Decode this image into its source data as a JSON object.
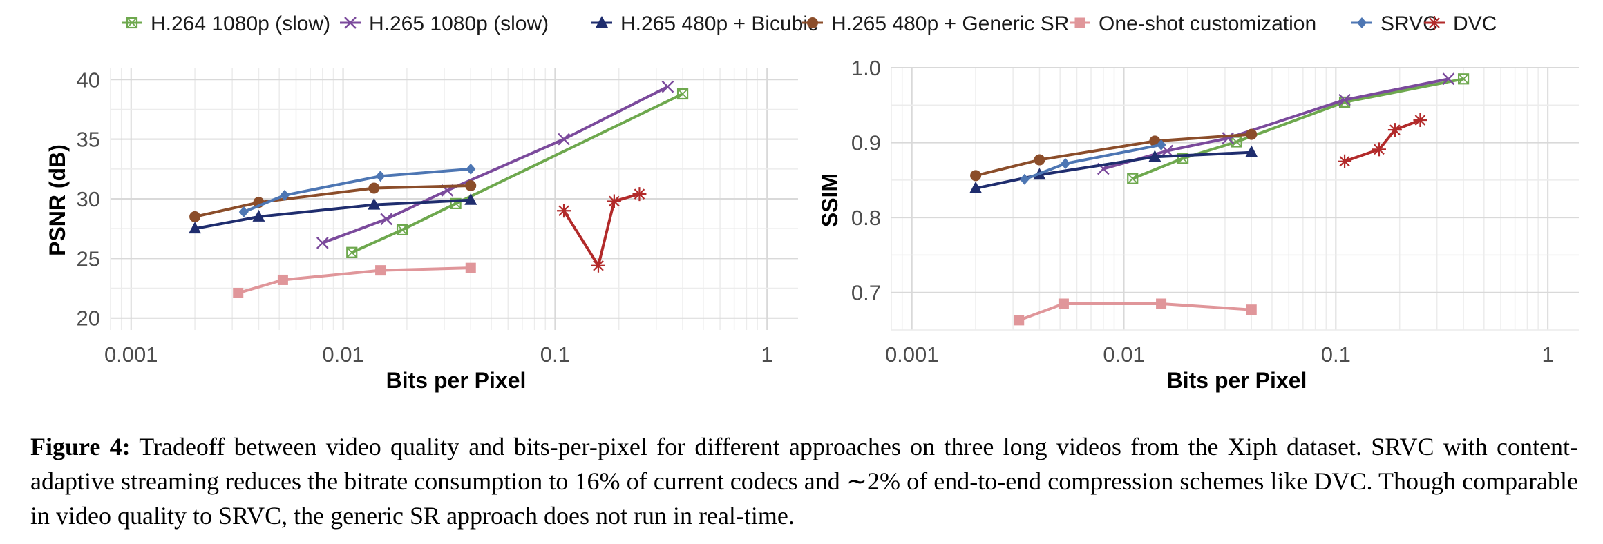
{
  "chart_data": [
    {
      "type": "line",
      "title": "",
      "xlabel": "Bits per Pixel",
      "ylabel": "PSNR (dB)",
      "xscale": "log",
      "xlim": [
        0.0008,
        1.4
      ],
      "ylim": [
        19,
        41
      ],
      "xticks": [
        0.001,
        0.01,
        0.1,
        1
      ],
      "xtick_labels": [
        "0.001",
        "0.01",
        "0.1",
        "1"
      ],
      "yticks": [
        20,
        25,
        30,
        35,
        40
      ],
      "ytick_labels": [
        "20",
        "25",
        "30",
        "35",
        "40"
      ],
      "grid": true,
      "series": [
        {
          "name": "H.264 1080p (slow)",
          "x": [
            0.011,
            0.019,
            0.034,
            0.4
          ],
          "y": [
            25.5,
            27.4,
            29.6,
            38.8
          ]
        },
        {
          "name": "H.265 1080p (slow)",
          "x": [
            0.008,
            0.016,
            0.031,
            0.11,
            0.34
          ],
          "y": [
            26.3,
            28.3,
            30.7,
            35.0,
            39.4
          ]
        },
        {
          "name": "H.265 480p + Bicubic",
          "x": [
            0.002,
            0.004,
            0.014,
            0.04
          ],
          "y": [
            27.5,
            28.5,
            29.5,
            29.9
          ]
        },
        {
          "name": "H.265 480p + Generic SR",
          "x": [
            0.002,
            0.004,
            0.014,
            0.04
          ],
          "y": [
            28.5,
            29.7,
            30.9,
            31.1
          ]
        },
        {
          "name": "One-shot customization",
          "x": [
            0.0032,
            0.0052,
            0.015,
            0.04
          ],
          "y": [
            22.1,
            23.2,
            24.0,
            24.2
          ]
        },
        {
          "name": "SRVC",
          "x": [
            0.0034,
            0.0053,
            0.015,
            0.04
          ],
          "y": [
            28.9,
            30.3,
            31.9,
            32.5
          ]
        },
        {
          "name": "DVC",
          "x": [
            0.11,
            0.16,
            0.19,
            0.25
          ],
          "y": [
            29.0,
            24.4,
            29.8,
            30.4
          ]
        }
      ]
    },
    {
      "type": "line",
      "title": "",
      "xlabel": "Bits per Pixel",
      "ylabel": "SSIM",
      "xscale": "log",
      "xlim": [
        0.0008,
        1.4
      ],
      "ylim": [
        0.65,
        1.0
      ],
      "xticks": [
        0.001,
        0.01,
        0.1,
        1
      ],
      "xtick_labels": [
        "0.001",
        "0.01",
        "0.1",
        "1"
      ],
      "yticks": [
        0.7,
        0.8,
        0.9,
        1.0
      ],
      "ytick_labels": [
        "0.7",
        "0.8",
        "0.9",
        "1.0"
      ],
      "grid": true,
      "series": [
        {
          "name": "H.264 1080p (slow)",
          "x": [
            0.011,
            0.019,
            0.034,
            0.11,
            0.4
          ],
          "y": [
            0.852,
            0.879,
            0.901,
            0.954,
            0.985
          ]
        },
        {
          "name": "H.265 1080p (slow)",
          "x": [
            0.008,
            0.016,
            0.031,
            0.11,
            0.34
          ],
          "y": [
            0.865,
            0.889,
            0.906,
            0.957,
            0.985
          ]
        },
        {
          "name": "H.265 480p + Bicubic",
          "x": [
            0.002,
            0.004,
            0.014,
            0.04
          ],
          "y": [
            0.839,
            0.857,
            0.881,
            0.887
          ]
        },
        {
          "name": "H.265 480p + Generic SR",
          "x": [
            0.002,
            0.004,
            0.014,
            0.04
          ],
          "y": [
            0.856,
            0.877,
            0.902,
            0.911
          ]
        },
        {
          "name": "One-shot customization",
          "x": [
            0.0032,
            0.0052,
            0.015,
            0.04
          ],
          "y": [
            0.663,
            0.685,
            0.685,
            0.677
          ]
        },
        {
          "name": "SRVC",
          "x": [
            0.0034,
            0.0053,
            0.015
          ],
          "y": [
            0.851,
            0.872,
            0.897
          ]
        },
        {
          "name": "DVC",
          "x": [
            0.11,
            0.16,
            0.19,
            0.25
          ],
          "y": [
            0.875,
            0.891,
            0.917,
            0.93
          ]
        }
      ]
    }
  ],
  "legend": {
    "placement": "top",
    "entries": [
      {
        "name": "H.264 1080p (slow)",
        "color": "#6ea84e",
        "marker": "square-cross"
      },
      {
        "name": "H.265 1080p (slow)",
        "color": "#7b4a9c",
        "marker": "x"
      },
      {
        "name": "H.265 480p + Bicubic",
        "color": "#1f2d6e",
        "marker": "triangle"
      },
      {
        "name": "H.265 480p + Generic SR",
        "color": "#8b4d2a",
        "marker": "circle"
      },
      {
        "name": "One-shot customization",
        "color": "#e0969a",
        "marker": "square"
      },
      {
        "name": "SRVC",
        "color": "#4d76b3",
        "marker": "diamond"
      },
      {
        "name": "DVC",
        "color": "#b22a2a",
        "marker": "asterisk"
      }
    ]
  },
  "caption": {
    "label": "Figure 4:",
    "text": "Tradeoff between video quality and bits-per-pixel for different approaches on three long videos from the Xiph dataset. SRVC with content-adaptive streaming reduces the bitrate consumption to 16% of current codecs and ∼2% of end-to-end compression schemes like DVC. Though comparable in video quality to SRVC, the generic SR approach does not run in real-time."
  }
}
